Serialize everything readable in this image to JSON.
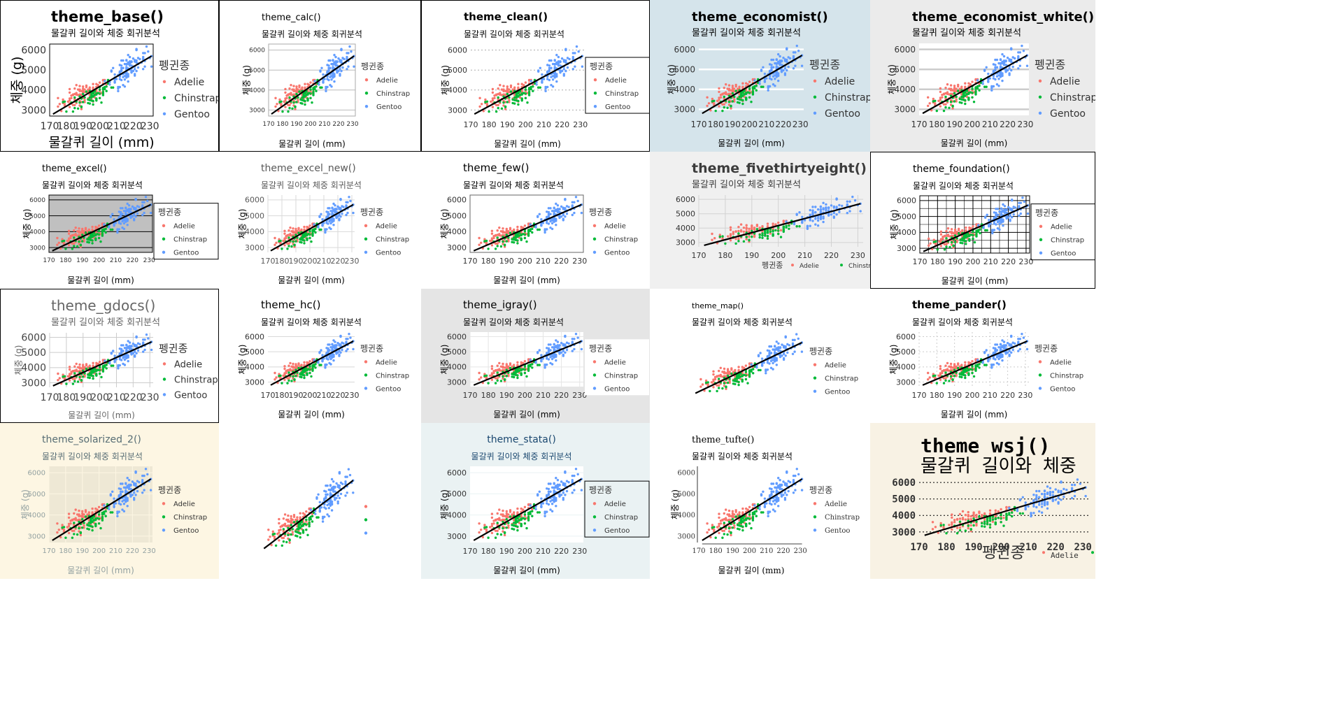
{
  "chart_data": {
    "type": "scatter",
    "x_label": "물갈퀴 길이 (mm)",
    "y_label": "체중 (g)",
    "subtitle": "물갈퀴 길이와 체중 회귀분석",
    "legend_title": "펭귄종",
    "xlim": [
      170,
      232
    ],
    "ylim": [
      2700,
      6300
    ],
    "x_ticks": [
      170,
      180,
      190,
      200,
      210,
      220,
      230
    ],
    "y_ticks": [
      3000,
      4000,
      5000,
      6000
    ],
    "series": [
      {
        "name": "Adelie",
        "color": "#F8766D",
        "x_range": [
          172,
          210
        ],
        "y_range": [
          2850,
          4775
        ],
        "n": 110
      },
      {
        "name": "Chinstrap",
        "color": "#00BA38",
        "x_range": [
          178,
          212
        ],
        "y_range": [
          2700,
          4800
        ],
        "n": 68
      },
      {
        "name": "Gentoo",
        "color": "#619CFF",
        "x_range": [
          203,
          231
        ],
        "y_range": [
          3950,
          6300
        ],
        "n": 120
      }
    ],
    "regression_line": {
      "x": [
        172,
        231
      ],
      "y": [
        2800,
        5700
      ],
      "color": "#000000"
    }
  },
  "panels": [
    {
      "title": "theme_base()",
      "theme": "base"
    },
    {
      "title": "theme_calc()",
      "theme": "calc"
    },
    {
      "title": "theme_clean()",
      "theme": "clean"
    },
    {
      "title": "theme_economist()",
      "theme": "economist"
    },
    {
      "title": "theme_economist_white()",
      "theme": "economist_white"
    },
    {
      "title": "theme_excel()",
      "theme": "excel"
    },
    {
      "title": "theme_excel_new()",
      "theme": "excel_new"
    },
    {
      "title": "theme_few()",
      "theme": "few"
    },
    {
      "title": "theme_fivethirtyeight()",
      "theme": "fivethirtyeight"
    },
    {
      "title": "theme_foundation()",
      "theme": "foundation"
    },
    {
      "title": "theme_gdocs()",
      "theme": "gdocs"
    },
    {
      "title": "theme_hc()",
      "theme": "hc"
    },
    {
      "title": "theme_igray()",
      "theme": "igray"
    },
    {
      "title": "theme_map()",
      "theme": "map"
    },
    {
      "title": "theme_pander()",
      "theme": "pander"
    },
    {
      "title": "theme_solarized_2()",
      "theme": "solarized_2"
    },
    {
      "title": "",
      "theme": "solid"
    },
    {
      "title": "theme_stata()",
      "theme": "stata"
    },
    {
      "title": "theme_tufte()",
      "theme": "tufte"
    },
    {
      "title": "theme wsj()",
      "theme": "wsj",
      "subtitle": "물갈퀴 길이와 체중"
    }
  ]
}
